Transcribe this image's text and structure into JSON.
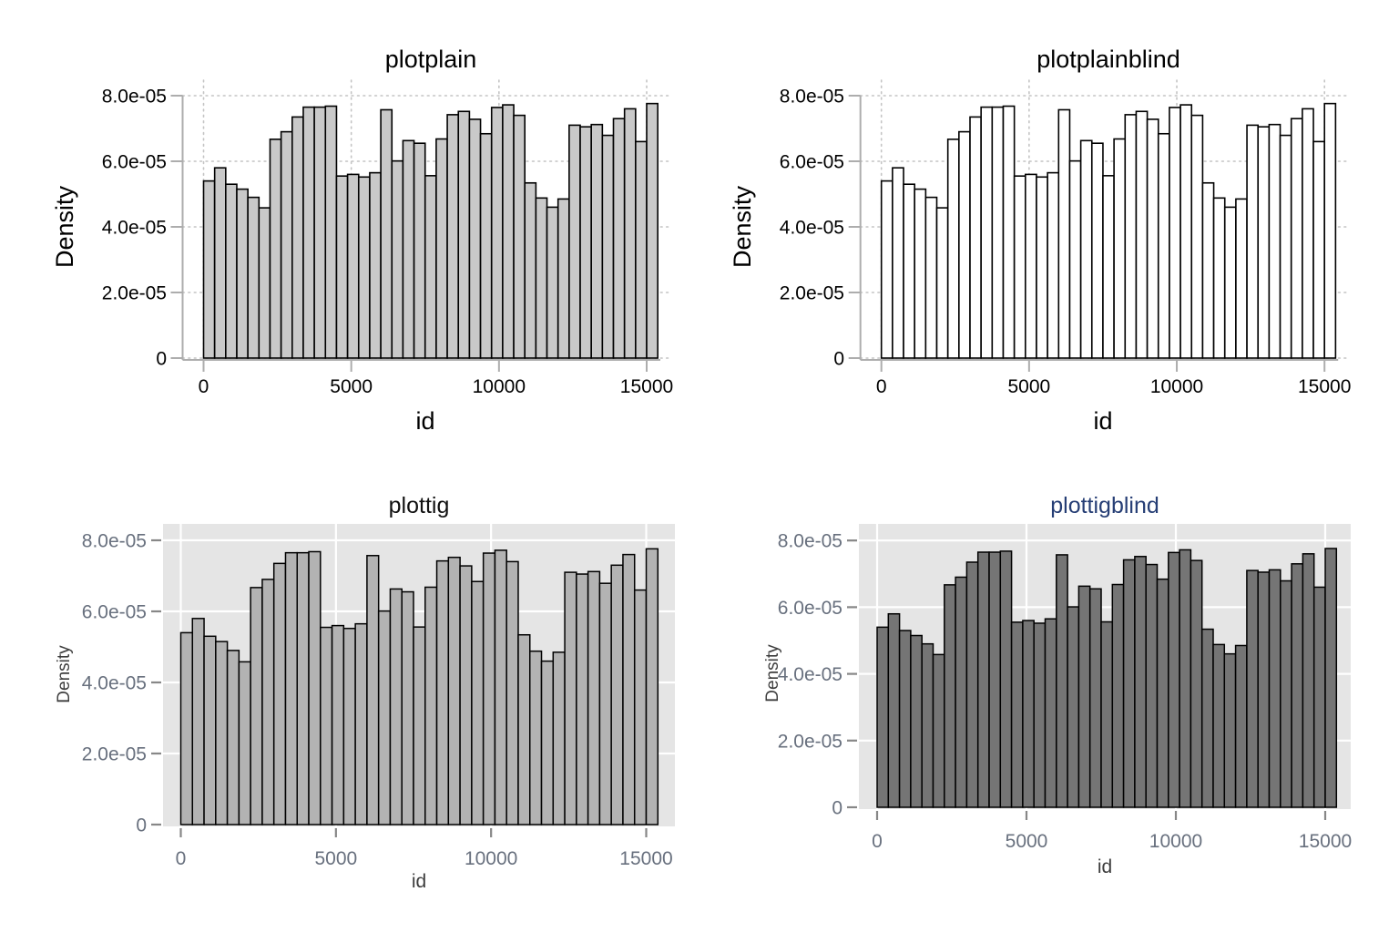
{
  "figure": {
    "background": "#ffffff",
    "layout": "2x2 grid of histogram panels"
  },
  "chart_data": {
    "type": "bar",
    "kind": "histogram",
    "title": "",
    "xlabel": "id",
    "ylabel": "Density",
    "x_ticks": [
      0,
      5000,
      10000,
      15000
    ],
    "x_tick_labels": [
      "0",
      "5000",
      "10000",
      "15000"
    ],
    "y_tick_labels": [
      "0",
      "2.0e-05",
      "4.0e-05",
      "6.0e-05",
      "8.0e-05"
    ],
    "y_tick_values_e5": [
      0,
      2,
      4,
      6,
      8
    ],
    "x_range": [
      0,
      15375
    ],
    "y_range_e5": [
      0,
      8.4
    ],
    "bin_start": 0,
    "bin_width": 375,
    "n_bins": 41,
    "density_scale": "1e-05",
    "densities_e5": [
      5.4,
      5.8,
      5.3,
      5.15,
      4.9,
      4.58,
      6.67,
      6.9,
      7.35,
      7.65,
      7.65,
      7.68,
      5.55,
      5.6,
      5.52,
      5.65,
      7.57,
      6.01,
      6.63,
      6.55,
      5.56,
      6.68,
      7.42,
      7.52,
      7.28,
      6.84,
      7.64,
      7.72,
      7.4,
      5.34,
      4.88,
      4.6,
      4.85,
      7.1,
      7.05,
      7.12,
      6.79,
      7.3,
      7.6,
      6.6,
      7.76
    ],
    "panels": [
      {
        "title": "plotplain",
        "scheme": "plotplain",
        "title_color": "#000000",
        "bar_fill": "#c9c9c9",
        "bar_stroke": "#000000",
        "plot_background": "#ffffff",
        "gridline_style": "dotted",
        "gridline_color": "#c4c4c4",
        "axis_color": "#adadad",
        "tick_label_color": "#000000",
        "axis_title_color": "#000000"
      },
      {
        "title": "plotplainblind",
        "scheme": "plotplainblind",
        "title_color": "#000000",
        "bar_fill": "#ffffff",
        "bar_stroke": "#000000",
        "plot_background": "#ffffff",
        "gridline_style": "dotted",
        "gridline_color": "#c4c4c4",
        "axis_color": "#adadad",
        "tick_label_color": "#000000",
        "axis_title_color": "#000000"
      },
      {
        "title": "plottig",
        "scheme": "plottig",
        "title_color": "#111111",
        "bar_fill": "#b3b3b3",
        "bar_stroke": "#000000",
        "plot_background": "#e5e5e5",
        "gridline_style": "solid",
        "gridline_color": "#ffffff",
        "tick_color": "#878787",
        "tick_label_color": "#68707e",
        "axis_title_color": "#3d3d3d"
      },
      {
        "title": "plottigblind",
        "scheme": "plottigblind",
        "title_color": "#263e75",
        "bar_fill": "#757575",
        "bar_stroke": "#000000",
        "plot_background": "#e5e5e5",
        "gridline_style": "solid",
        "gridline_color": "#ffffff",
        "tick_color": "#878787",
        "tick_label_color": "#68707e",
        "axis_title_color": "#3d3d3d"
      }
    ]
  }
}
